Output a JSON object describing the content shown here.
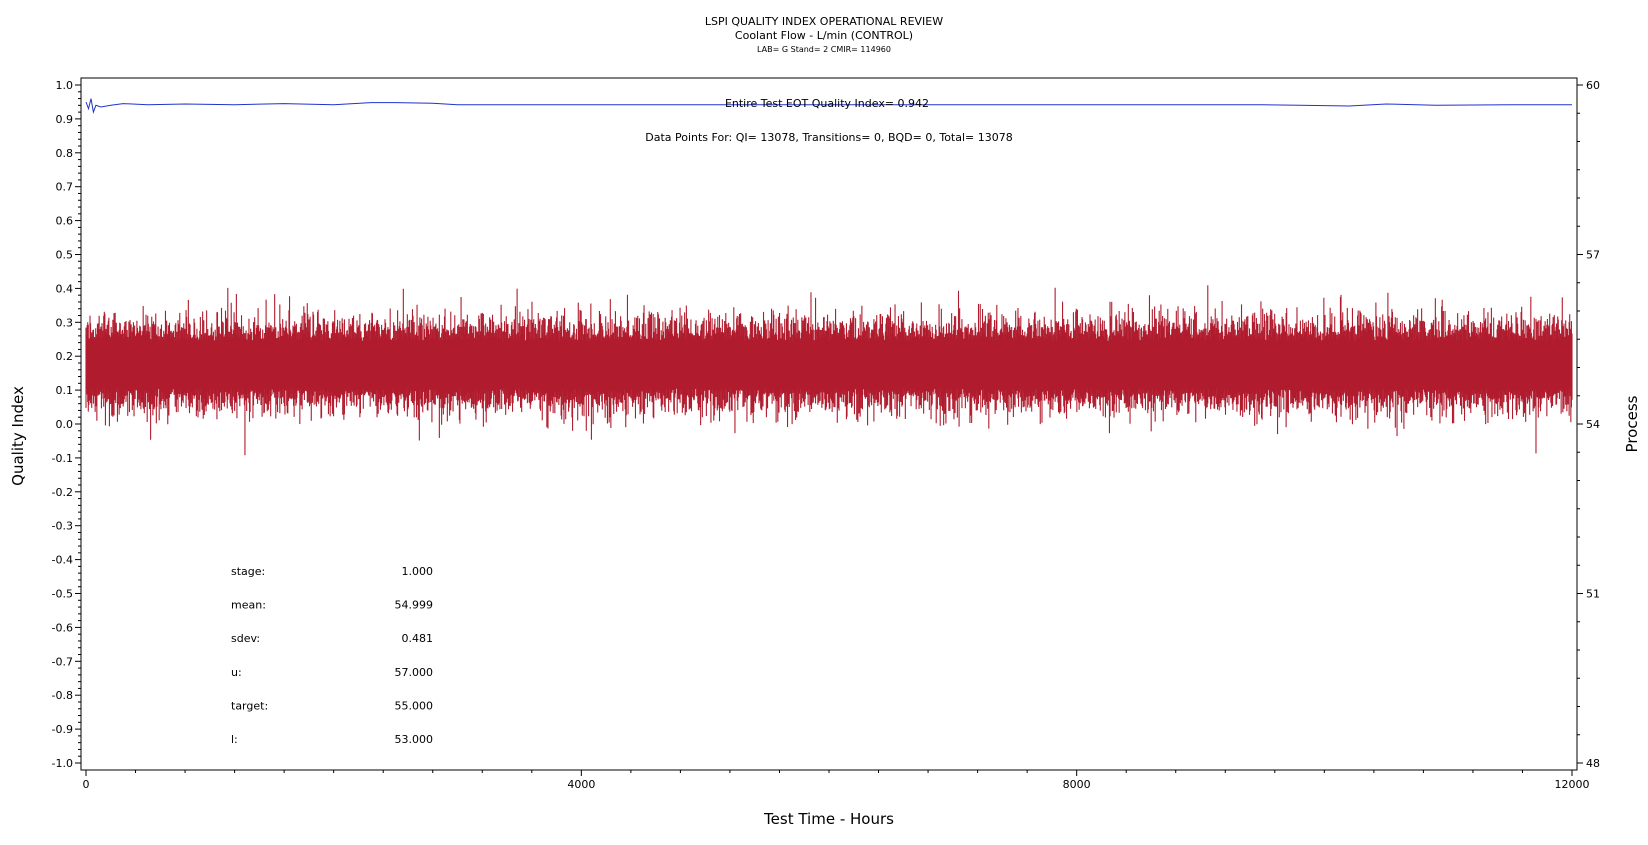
{
  "title": {
    "line1": "LSPI QUALITY INDEX OPERATIONAL REVIEW",
    "line2": "Coolant Flow - L/min (CONTROL)",
    "line3": "LAB= G Stand= 2 CMIR= 114960"
  },
  "annotations": {
    "quality_index": "Entire Test EOT Quality Index=   0.942",
    "data_points": "Data Points For: QI= 13078, Transitions=     0, BQD=     0, Total= 13078"
  },
  "stats": [
    {
      "label": "stage:",
      "value": "1.000"
    },
    {
      "label": "mean:",
      "value": "54.999"
    },
    {
      "label": "sdev:",
      "value": "0.481"
    },
    {
      "label": "u:",
      "value": "57.000"
    },
    {
      "label": "target:",
      "value": "55.000"
    },
    {
      "label": "l:",
      "value": "53.000"
    }
  ],
  "chart_data": {
    "type": "line",
    "title": "LSPI QUALITY INDEX OPERATIONAL REVIEW",
    "xlabel": "Test Time - Hours",
    "ylabel": "Quality Index",
    "y2label": "Process",
    "xlim": [
      0,
      12000
    ],
    "ylim": [
      -1.0,
      1.0
    ],
    "y2lim": [
      48,
      60
    ],
    "x_ticks": [
      0,
      4000,
      8000,
      12000
    ],
    "y_ticks": [
      "-1.0",
      "-0.9",
      "-0.8",
      "-0.7",
      "-0.6",
      "-0.5",
      "-0.4",
      "-0.3",
      "-0.2",
      "-0.1",
      "0.0",
      "0.1",
      "0.2",
      "0.3",
      "0.4",
      "0.5",
      "0.6",
      "0.7",
      "0.8",
      "0.9",
      "1.0"
    ],
    "y2_ticks": [
      48,
      51,
      54,
      57,
      60
    ],
    "grid": false,
    "series": [
      {
        "color": "#2233cc",
        "x": [
          0,
          20,
          40,
          60,
          80,
          120,
          200,
          300,
          500,
          800,
          1200,
          1600,
          2000,
          2300,
          2500,
          2800,
          3000,
          4000,
          6000,
          8000,
          9500,
          9800,
          10200,
          10500,
          10900,
          11500,
          12000
        ],
        "y": [
          0.95,
          0.93,
          0.96,
          0.92,
          0.94,
          0.935,
          0.94,
          0.945,
          0.942,
          0.944,
          0.942,
          0.945,
          0.942,
          0.948,
          0.948,
          0.946,
          0.942,
          0.942,
          0.942,
          0.942,
          0.942,
          0.94,
          0.938,
          0.944,
          0.94,
          0.942,
          0.942
        ]
      },
      {
        "color": "#b01c2e",
        "x": [
          0,
          12000
        ],
        "mean": 0.175,
        "band": [
          -0.12,
          0.42
        ],
        "points": 13078
      }
    ]
  }
}
